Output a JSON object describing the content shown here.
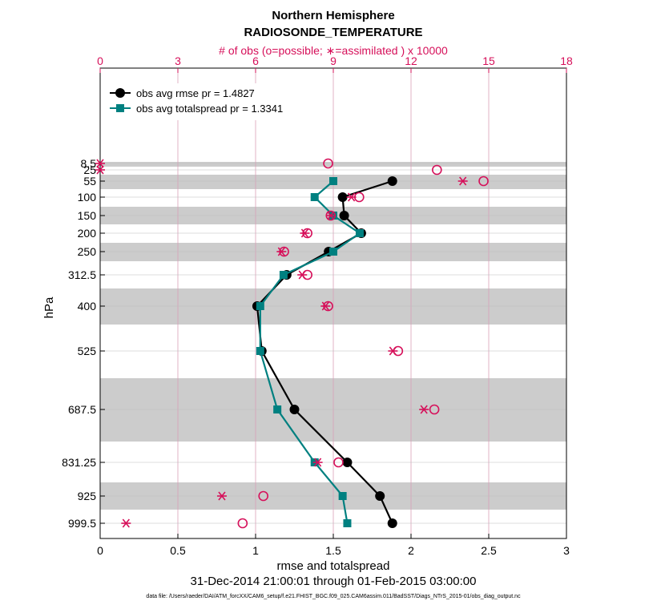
{
  "chart_data": {
    "type": "line",
    "title_line1": "Northern Hemisphere",
    "title_line2": "RADIOSONDE_TEMPERATURE",
    "top_axis_label": "# of obs (o=possible; ∗=assimilated ) x 10000",
    "xlabel": "rmse and totalspread",
    "ylabel": "hPa",
    "date_range": "31-Dec-2014 21:00:01 through 01-Feb-2015 03:00:00",
    "data_file": "data file: /Users/raeder/DAI/ATM_forcXX/CAM6_setup/f.e21.FHIST_BGC.f09_025.CAM6assim.011/BadSST/Diags_NTrS_2015-01/obs_diag_output.nc",
    "xlim": [
      0,
      3
    ],
    "x_ticks": [
      "0",
      "0.5",
      "1",
      "1.5",
      "2",
      "2.5",
      "3"
    ],
    "top_xlim": [
      0,
      18
    ],
    "top_ticks": [
      "0",
      "3",
      "6",
      "9",
      "12",
      "15",
      "18"
    ],
    "levels": [
      8.5,
      25,
      55,
      100,
      150,
      200,
      250,
      312.5,
      400,
      525,
      687.5,
      831.25,
      925,
      999.5
    ],
    "level_labels": [
      "8.5",
      "25",
      "55",
      "100",
      "150",
      "200",
      "250",
      "312.5",
      "400",
      "525",
      "687.5",
      "831.25",
      "925",
      "999.5"
    ],
    "rmse_levels": [
      55,
      100,
      150,
      200,
      250,
      312.5,
      400,
      525,
      687.5,
      831.25,
      925,
      999.5
    ],
    "series": [
      {
        "name": "obs avg rmse pr = 1.4827",
        "color": "#000000",
        "marker": "circle",
        "values": [
          1.88,
          1.56,
          1.57,
          1.68,
          1.47,
          1.2,
          1.01,
          1.04,
          1.25,
          1.59,
          1.8,
          1.88
        ]
      },
      {
        "name": "obs avg totalspread pr = 1.3341",
        "color": "#008080",
        "marker": "square",
        "values": [
          1.5,
          1.38,
          1.5,
          1.67,
          1.5,
          1.18,
          1.03,
          1.03,
          1.14,
          1.38,
          1.56,
          1.59
        ]
      }
    ],
    "possible_obs": [
      8.8,
      13.0,
      14.8,
      10.0,
      8.9,
      8.0,
      7.1,
      8.0,
      8.8,
      11.5,
      12.9,
      9.2,
      6.3,
      5.5
    ],
    "assimilated_obs": [
      0.0,
      0.0,
      14.0,
      9.7,
      8.9,
      7.9,
      7.0,
      7.8,
      8.7,
      11.3,
      12.5,
      8.4,
      4.7,
      1.0
    ],
    "shade_color": "#cccccc",
    "accent_color": "#d6105a"
  }
}
